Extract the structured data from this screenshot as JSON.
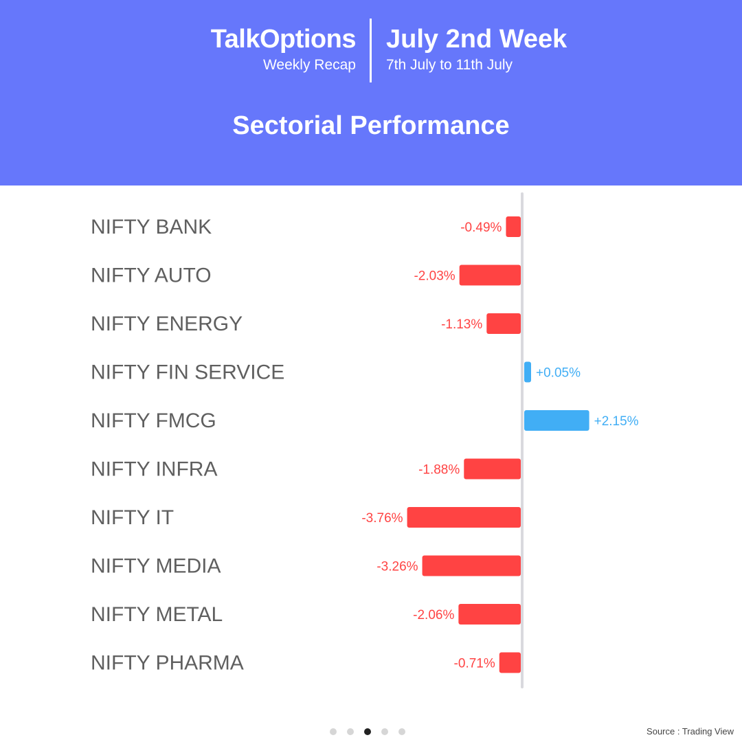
{
  "header": {
    "brand": "TalkOptions",
    "brand_sub": "Weekly Recap",
    "week_title": "July 2nd Week",
    "week_dates": "7th July  to 11th July",
    "section_title": "Sectorial Performance"
  },
  "colors": {
    "header_bg": "#6677fb",
    "negative": "#ff4343",
    "positive": "#41aef5",
    "label_text": "#5f5f5f",
    "axis": "#d9d9de"
  },
  "chart_data": {
    "type": "bar",
    "orientation": "horizontal",
    "categories": [
      "NIFTY BANK",
      "NIFTY AUTO",
      "NIFTY ENERGY",
      "NIFTY FIN SERVICE",
      "NIFTY FMCG",
      "NIFTY INFRA",
      "NIFTY IT",
      "NIFTY MEDIA",
      "NIFTY METAL",
      "NIFTY PHARMA"
    ],
    "values": [
      -0.49,
      -2.03,
      -1.13,
      0.05,
      2.15,
      -1.88,
      -3.76,
      -3.26,
      -2.06,
      -0.71
    ],
    "value_labels": [
      "-0.49%",
      "-2.03%",
      "-1.13%",
      "+0.05%",
      "+2.15%",
      "-1.88%",
      "-3.76%",
      "-3.26%",
      "-2.06%",
      "-0.71%"
    ],
    "unit": "%",
    "grid": false
  },
  "pagination": {
    "total": 5,
    "active_index": 2
  },
  "footer": {
    "source": "Source : Trading View"
  }
}
